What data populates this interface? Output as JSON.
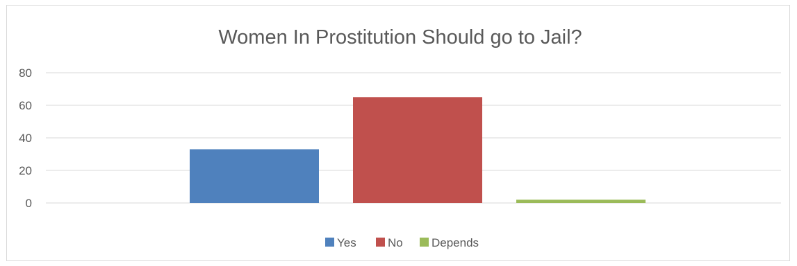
{
  "chart_data": {
    "type": "bar",
    "title": "Women In Prostitution Should go to Jail?",
    "xlabel": "",
    "ylabel": "",
    "ylim": [
      0,
      80
    ],
    "yticks": [
      0,
      20,
      40,
      60,
      80
    ],
    "grid": true,
    "legend_position": "bottom",
    "series": [
      {
        "name": "Yes",
        "values": [
          33
        ],
        "color": "#4f81bd"
      },
      {
        "name": "No",
        "values": [
          65
        ],
        "color": "#c0504d"
      },
      {
        "name": "Depends",
        "values": [
          2
        ],
        "color": "#9bbb59"
      }
    ]
  }
}
